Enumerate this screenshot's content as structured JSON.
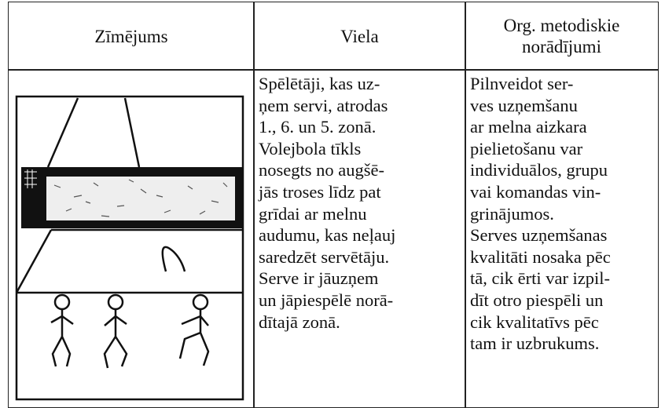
{
  "table": {
    "header": [
      "Zīmējums",
      "Viela",
      [
        "Org. metodiskie",
        "norādījumi"
      ]
    ],
    "rows": [
      [
        null,
        [
          "Spēlētāji, kas uz-",
          "ņem servi, atrodas",
          "1., 6. un 5. zonā.",
          "Volejbola tīkls",
          "nosegts no augšē-",
          "jās troses līdz pat",
          "grīdai ar melnu",
          "audumu, kas neļauj",
          "saredzēt servētāju.",
          "Serve ir jāuzņem",
          "un jāpiespēlē norā-",
          "dītajā zonā."
        ],
        [
          "Pilnveidot ser-",
          "ves uzņemšanu",
          "ar melna aizkara",
          "pielietošanu var",
          "individuālos, grupu",
          "vai komandas vin-",
          "grinājumos.",
          "Serves uzņemšanas",
          "kvalitāti nosaka pēc",
          "tā, cik ērti var izpil-",
          "dīt otro piespēli un",
          "cik kvalitatīvs pēc",
          "tam ir uzbrukums."
        ]
      ]
    ]
  }
}
